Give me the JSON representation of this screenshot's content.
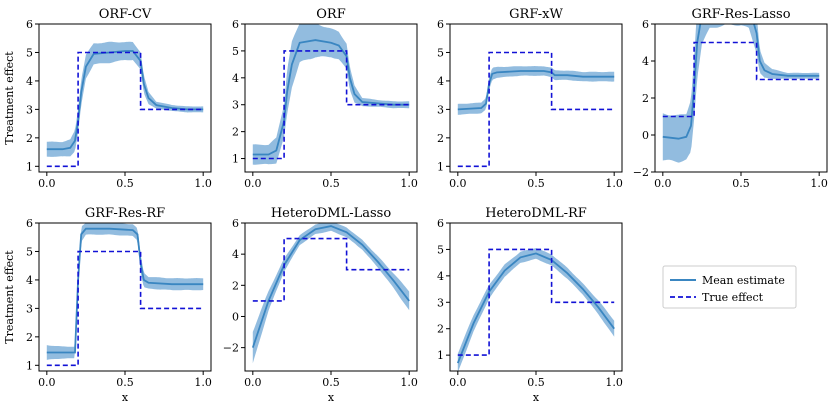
{
  "legend": {
    "mean_label": "Mean estimate",
    "true_label": "True effect",
    "mean_color": "#3a86c1",
    "band_color": "#7fb0d9",
    "true_color": "#1212d6"
  },
  "chart_data": [
    {
      "type": "line",
      "title": "ORF-CV",
      "ylabel": "Treatment effect",
      "xlabel": "",
      "xlim": [
        -0.05,
        1.05
      ],
      "ylim": [
        0.8,
        6.0
      ],
      "xticks": [
        "0.0",
        "0.5",
        "1.0"
      ],
      "yticks": [
        "1",
        "2",
        "3",
        "4",
        "5",
        "6"
      ],
      "true_effect": {
        "x": [
          0,
          0.2,
          0.2,
          0.6,
          0.6,
          1.0
        ],
        "y": [
          1,
          1,
          5,
          5,
          3,
          3
        ]
      },
      "mean_estimate": {
        "x": [
          0,
          0.1,
          0.15,
          0.18,
          0.2,
          0.22,
          0.25,
          0.3,
          0.4,
          0.5,
          0.55,
          0.6,
          0.62,
          0.65,
          0.7,
          0.8,
          0.9,
          1.0
        ],
        "y": [
          1.6,
          1.6,
          1.65,
          1.9,
          2.6,
          3.6,
          4.5,
          4.95,
          5.0,
          5.05,
          5.05,
          4.7,
          3.9,
          3.4,
          3.15,
          3.05,
          3.0,
          3.0
        ]
      },
      "band_width": [
        0.25,
        0.25,
        0.28,
        0.35,
        0.4,
        0.45,
        0.4,
        0.35,
        0.35,
        0.3,
        0.3,
        0.3,
        0.3,
        0.2,
        0.12,
        0.1,
        0.1,
        0.1
      ]
    },
    {
      "type": "line",
      "title": "ORF",
      "ylabel": "",
      "xlabel": "",
      "xlim": [
        -0.05,
        1.05
      ],
      "ylim": [
        0.5,
        6.0
      ],
      "xticks": [
        "0.0",
        "0.5",
        "1.0"
      ],
      "yticks": [
        "1",
        "2",
        "3",
        "4",
        "5",
        "6"
      ],
      "true_effect": {
        "x": [
          0,
          0.2,
          0.2,
          0.6,
          0.6,
          1.0
        ],
        "y": [
          1,
          1,
          5,
          5,
          3,
          3
        ]
      },
      "mean_estimate": {
        "x": [
          0,
          0.1,
          0.15,
          0.2,
          0.22,
          0.25,
          0.3,
          0.4,
          0.5,
          0.55,
          0.6,
          0.62,
          0.65,
          0.7,
          0.8,
          0.9,
          1.0
        ],
        "y": [
          1.15,
          1.15,
          1.3,
          2.4,
          3.5,
          4.5,
          5.3,
          5.4,
          5.3,
          5.2,
          4.8,
          4.0,
          3.4,
          3.1,
          3.05,
          3.0,
          3.0
        ]
      },
      "band_width": [
        0.35,
        0.35,
        0.45,
        0.6,
        0.8,
        0.8,
        0.7,
        0.6,
        0.5,
        0.5,
        0.45,
        0.4,
        0.3,
        0.15,
        0.12,
        0.12,
        0.12
      ]
    },
    {
      "type": "line",
      "title": "GRF-xW",
      "ylabel": "",
      "xlabel": "",
      "xlim": [
        -0.05,
        1.05
      ],
      "ylim": [
        0.8,
        6.0
      ],
      "xticks": [
        "0.0",
        "0.5",
        "1.0"
      ],
      "yticks": [
        "1",
        "2",
        "3",
        "4",
        "5",
        "6"
      ],
      "true_effect": {
        "x": [
          0,
          0.2,
          0.2,
          0.6,
          0.6,
          1.0
        ],
        "y": [
          1,
          1,
          5,
          5,
          3,
          3
        ]
      },
      "mean_estimate": {
        "x": [
          0,
          0.15,
          0.18,
          0.2,
          0.22,
          0.25,
          0.4,
          0.55,
          0.6,
          0.62,
          0.7,
          0.8,
          1.0
        ],
        "y": [
          3.0,
          3.05,
          3.2,
          3.9,
          4.25,
          4.3,
          4.35,
          4.35,
          4.3,
          4.2,
          4.2,
          4.15,
          4.15
        ]
      },
      "band_width": [
        0.18,
        0.18,
        0.2,
        0.22,
        0.2,
        0.18,
        0.16,
        0.16,
        0.16,
        0.16,
        0.16,
        0.16,
        0.16
      ]
    },
    {
      "type": "line",
      "title": "GRF-Res-Lasso",
      "ylabel": "",
      "xlabel": "",
      "xlim": [
        -0.05,
        1.05
      ],
      "ylim": [
        -2.0,
        6.0
      ],
      "xticks": [
        "0.0",
        "0.5",
        "1.0"
      ],
      "yticks": [
        "−2",
        "0",
        "2",
        "4",
        "6"
      ],
      "ytick_values": [
        -2,
        0,
        2,
        4,
        6
      ],
      "true_effect": {
        "x": [
          0,
          0.2,
          0.2,
          0.6,
          0.6,
          1.0
        ],
        "y": [
          1,
          1,
          5,
          5,
          3,
          3
        ]
      },
      "mean_estimate": {
        "x": [
          0,
          0.1,
          0.15,
          0.18,
          0.2,
          0.22,
          0.25,
          0.3,
          0.4,
          0.5,
          0.55,
          0.6,
          0.62,
          0.65,
          0.7,
          0.8,
          1.0
        ],
        "y": [
          -0.1,
          -0.2,
          -0.1,
          0.5,
          2.5,
          5.0,
          6.5,
          7.0,
          7.2,
          7.2,
          7.0,
          5.5,
          4.0,
          3.5,
          3.3,
          3.2,
          3.2
        ]
      },
      "band_width": [
        1.2,
        1.2,
        1.2,
        1.4,
        1.6,
        1.8,
        1.5,
        1.2,
        1.2,
        1.2,
        1.2,
        1.0,
        0.6,
        0.4,
        0.25,
        0.15,
        0.15
      ]
    },
    {
      "type": "line",
      "title": "GRF-Res-RF",
      "ylabel": "Treatment effect",
      "xlabel": "x",
      "xlim": [
        -0.05,
        1.05
      ],
      "ylim": [
        0.8,
        6.0
      ],
      "xticks": [
        "0.0",
        "0.5",
        "1.0"
      ],
      "yticks": [
        "1",
        "2",
        "3",
        "4",
        "5",
        "6"
      ],
      "true_effect": {
        "x": [
          0,
          0.2,
          0.2,
          0.6,
          0.6,
          1.0
        ],
        "y": [
          1,
          1,
          5,
          5,
          3,
          3
        ]
      },
      "mean_estimate": {
        "x": [
          0,
          0.1,
          0.18,
          0.2,
          0.22,
          0.25,
          0.4,
          0.55,
          0.58,
          0.6,
          0.62,
          0.65,
          0.8,
          1.0
        ],
        "y": [
          1.45,
          1.45,
          1.45,
          4.0,
          5.6,
          5.8,
          5.8,
          5.75,
          5.6,
          4.6,
          4.0,
          3.9,
          3.85,
          3.85
        ]
      },
      "band_width": [
        0.25,
        0.2,
        0.2,
        0.35,
        0.25,
        0.2,
        0.2,
        0.2,
        0.2,
        0.3,
        0.25,
        0.2,
        0.2,
        0.2
      ]
    },
    {
      "type": "line",
      "title": "HeteroDML-Lasso",
      "ylabel": "",
      "xlabel": "x",
      "xlim": [
        -0.05,
        1.05
      ],
      "ylim": [
        -3.5,
        6.0
      ],
      "xticks": [
        "0.0",
        "0.5",
        "1.0"
      ],
      "yticks": [
        "−2",
        "0",
        "2",
        "4",
        "6"
      ],
      "ytick_values": [
        -2,
        0,
        2,
        4,
        6
      ],
      "true_effect": {
        "x": [
          0,
          0.2,
          0.2,
          0.6,
          0.6,
          1.0
        ],
        "y": [
          1,
          1,
          5,
          5,
          3,
          3
        ]
      },
      "mean_estimate": {
        "x": [
          0,
          0.1,
          0.2,
          0.3,
          0.4,
          0.5,
          0.6,
          0.7,
          0.8,
          0.9,
          1.0
        ],
        "y": [
          -2.0,
          1.0,
          3.3,
          4.9,
          5.6,
          5.8,
          5.4,
          4.6,
          3.5,
          2.3,
          1.0
        ]
      },
      "band_width": [
        1.0,
        0.6,
        0.4,
        0.3,
        0.3,
        0.3,
        0.3,
        0.3,
        0.35,
        0.45,
        0.6
      ]
    },
    {
      "type": "line",
      "title": "HeteroDML-RF",
      "ylabel": "",
      "xlabel": "x",
      "xlim": [
        -0.05,
        1.05
      ],
      "ylim": [
        0.4,
        6.0
      ],
      "xticks": [
        "0.0",
        "0.5",
        "1.0"
      ],
      "yticks": [
        "1",
        "2",
        "3",
        "4",
        "5",
        "6"
      ],
      "true_effect": {
        "x": [
          0,
          0.2,
          0.2,
          0.6,
          0.6,
          1.0
        ],
        "y": [
          1,
          1,
          5,
          5,
          3,
          3
        ]
      },
      "mean_estimate": {
        "x": [
          0,
          0.1,
          0.2,
          0.3,
          0.4,
          0.5,
          0.6,
          0.7,
          0.8,
          0.9,
          1.0
        ],
        "y": [
          0.7,
          2.2,
          3.4,
          4.2,
          4.7,
          4.85,
          4.6,
          4.1,
          3.5,
          2.8,
          2.0
        ]
      },
      "band_width": [
        0.35,
        0.3,
        0.25,
        0.22,
        0.2,
        0.2,
        0.2,
        0.2,
        0.2,
        0.25,
        0.3
      ]
    }
  ]
}
